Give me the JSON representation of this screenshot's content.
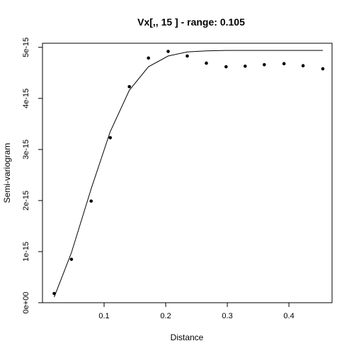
{
  "chart_data": {
    "type": "scatter",
    "title": "Vx[,, 15 ] - range: 0.105",
    "xlabel": "Distance",
    "ylabel": "Semi-variogram",
    "xlim": [
      0.0,
      0.47
    ],
    "ylim": [
      0.0,
      5.08e-15
    ],
    "x_ticks": [
      {
        "value": 0.1,
        "label": "0.1"
      },
      {
        "value": 0.2,
        "label": "0.2"
      },
      {
        "value": 0.3,
        "label": "0.3"
      },
      {
        "value": 0.4,
        "label": "0.4"
      }
    ],
    "y_ticks": [
      {
        "value": 0,
        "label": "0e+00"
      },
      {
        "value": 1e-15,
        "label": "1e-15"
      },
      {
        "value": 2e-15,
        "label": "2e-15"
      },
      {
        "value": 3e-15,
        "label": "3e-15"
      },
      {
        "value": 4e-15,
        "label": "4e-15"
      },
      {
        "value": 5e-15,
        "label": "5e-15"
      }
    ],
    "grid": false,
    "points": {
      "x": [
        0.019,
        0.047,
        0.079,
        0.11,
        0.141,
        0.172,
        0.204,
        0.235,
        0.266,
        0.298,
        0.329,
        0.36,
        0.392,
        0.423,
        0.455
      ],
      "y": [
        1.8e-16,
        8.5e-16,
        1.99e-15,
        3.23e-15,
        4.23e-15,
        4.79e-15,
        4.92e-15,
        4.83e-15,
        4.69e-15,
        4.62e-15,
        4.63e-15,
        4.66e-15,
        4.68e-15,
        4.64e-15,
        4.58e-15
      ]
    },
    "model_line": {
      "x": [
        0.019,
        0.047,
        0.079,
        0.11,
        0.141,
        0.172,
        0.204,
        0.235,
        0.266,
        0.298,
        0.329,
        0.36,
        0.392,
        0.423,
        0.455
      ],
      "y": [
        1.1e-16,
        9.8e-16,
        2.23e-15,
        3.35e-15,
        4.16e-15,
        4.62e-15,
        4.83e-15,
        4.91e-15,
        4.93e-15,
        4.94e-15,
        4.94e-15,
        4.94e-15,
        4.94e-15,
        4.94e-15,
        4.94e-15
      ]
    },
    "colors": {
      "points": "#000000",
      "line": "#000000",
      "frame": "#000000"
    }
  }
}
